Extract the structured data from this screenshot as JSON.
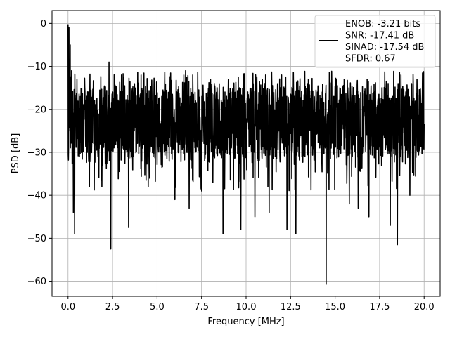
{
  "chart_data": {
    "type": "line",
    "xlabel": "Frequency [MHz]",
    "ylabel": "PSD [dB]",
    "xlim": [
      -0.9,
      20.9
    ],
    "ylim": [
      -63.5,
      3.0
    ],
    "xticks": [
      0.0,
      2.5,
      5.0,
      7.5,
      10.0,
      12.5,
      15.0,
      17.5,
      20.0
    ],
    "xtick_labels": [
      "0.0",
      "2.5",
      "5.0",
      "7.5",
      "10.0",
      "12.5",
      "15.0",
      "17.5",
      "20.0"
    ],
    "yticks": [
      0,
      -10,
      -20,
      -30,
      -40,
      -50,
      -60
    ],
    "ytick_labels": [
      "0",
      "−10",
      "−20",
      "−30",
      "−40",
      "−50",
      "−60"
    ],
    "grid": true,
    "legend_position": "top-right",
    "series": [
      {
        "name": "ENOB: -3.21 bits\nSNR: -17.41 dB\nSINAD: -17.54 dB\nSFDR: 0.67",
        "color": "#000000",
        "x_range": [
          0.0,
          20.0
        ],
        "points": 2000,
        "noise_floor_range": [
          -33,
          -13
        ],
        "dips": [
          [
            0.3,
            -44
          ],
          [
            0.37,
            -49
          ],
          [
            1.2,
            -38
          ],
          [
            1.9,
            -38
          ],
          [
            2.4,
            -52.5
          ],
          [
            3.4,
            -47.5
          ],
          [
            4.5,
            -38
          ],
          [
            6.0,
            -41
          ],
          [
            6.8,
            -43
          ],
          [
            7.5,
            -39
          ],
          [
            8.7,
            -49
          ],
          [
            9.7,
            -48
          ],
          [
            10.5,
            -45
          ],
          [
            11.3,
            -44
          ],
          [
            12.3,
            -48
          ],
          [
            12.8,
            -49
          ],
          [
            14.5,
            -60.7
          ],
          [
            15.8,
            -42
          ],
          [
            16.3,
            -43
          ],
          [
            16.9,
            -45
          ],
          [
            18.1,
            -47
          ],
          [
            18.5,
            -51.5
          ],
          [
            19.2,
            -40
          ]
        ],
        "peaks": [
          [
            0.0,
            -0.2
          ],
          [
            0.05,
            -1
          ],
          [
            0.12,
            -5
          ],
          [
            0.2,
            -11
          ],
          [
            0.5,
            -13
          ],
          [
            2.3,
            -9
          ],
          [
            3.0,
            -12
          ],
          [
            4.1,
            -12
          ],
          [
            6.6,
            -11
          ],
          [
            7.0,
            -12
          ],
          [
            8.0,
            -13
          ],
          [
            9.0,
            -13
          ],
          [
            11.1,
            -12
          ],
          [
            12.0,
            -12
          ],
          [
            13.5,
            -13
          ],
          [
            16.8,
            -13
          ],
          [
            18.7,
            -12
          ],
          [
            19.6,
            -13
          ]
        ]
      }
    ]
  }
}
